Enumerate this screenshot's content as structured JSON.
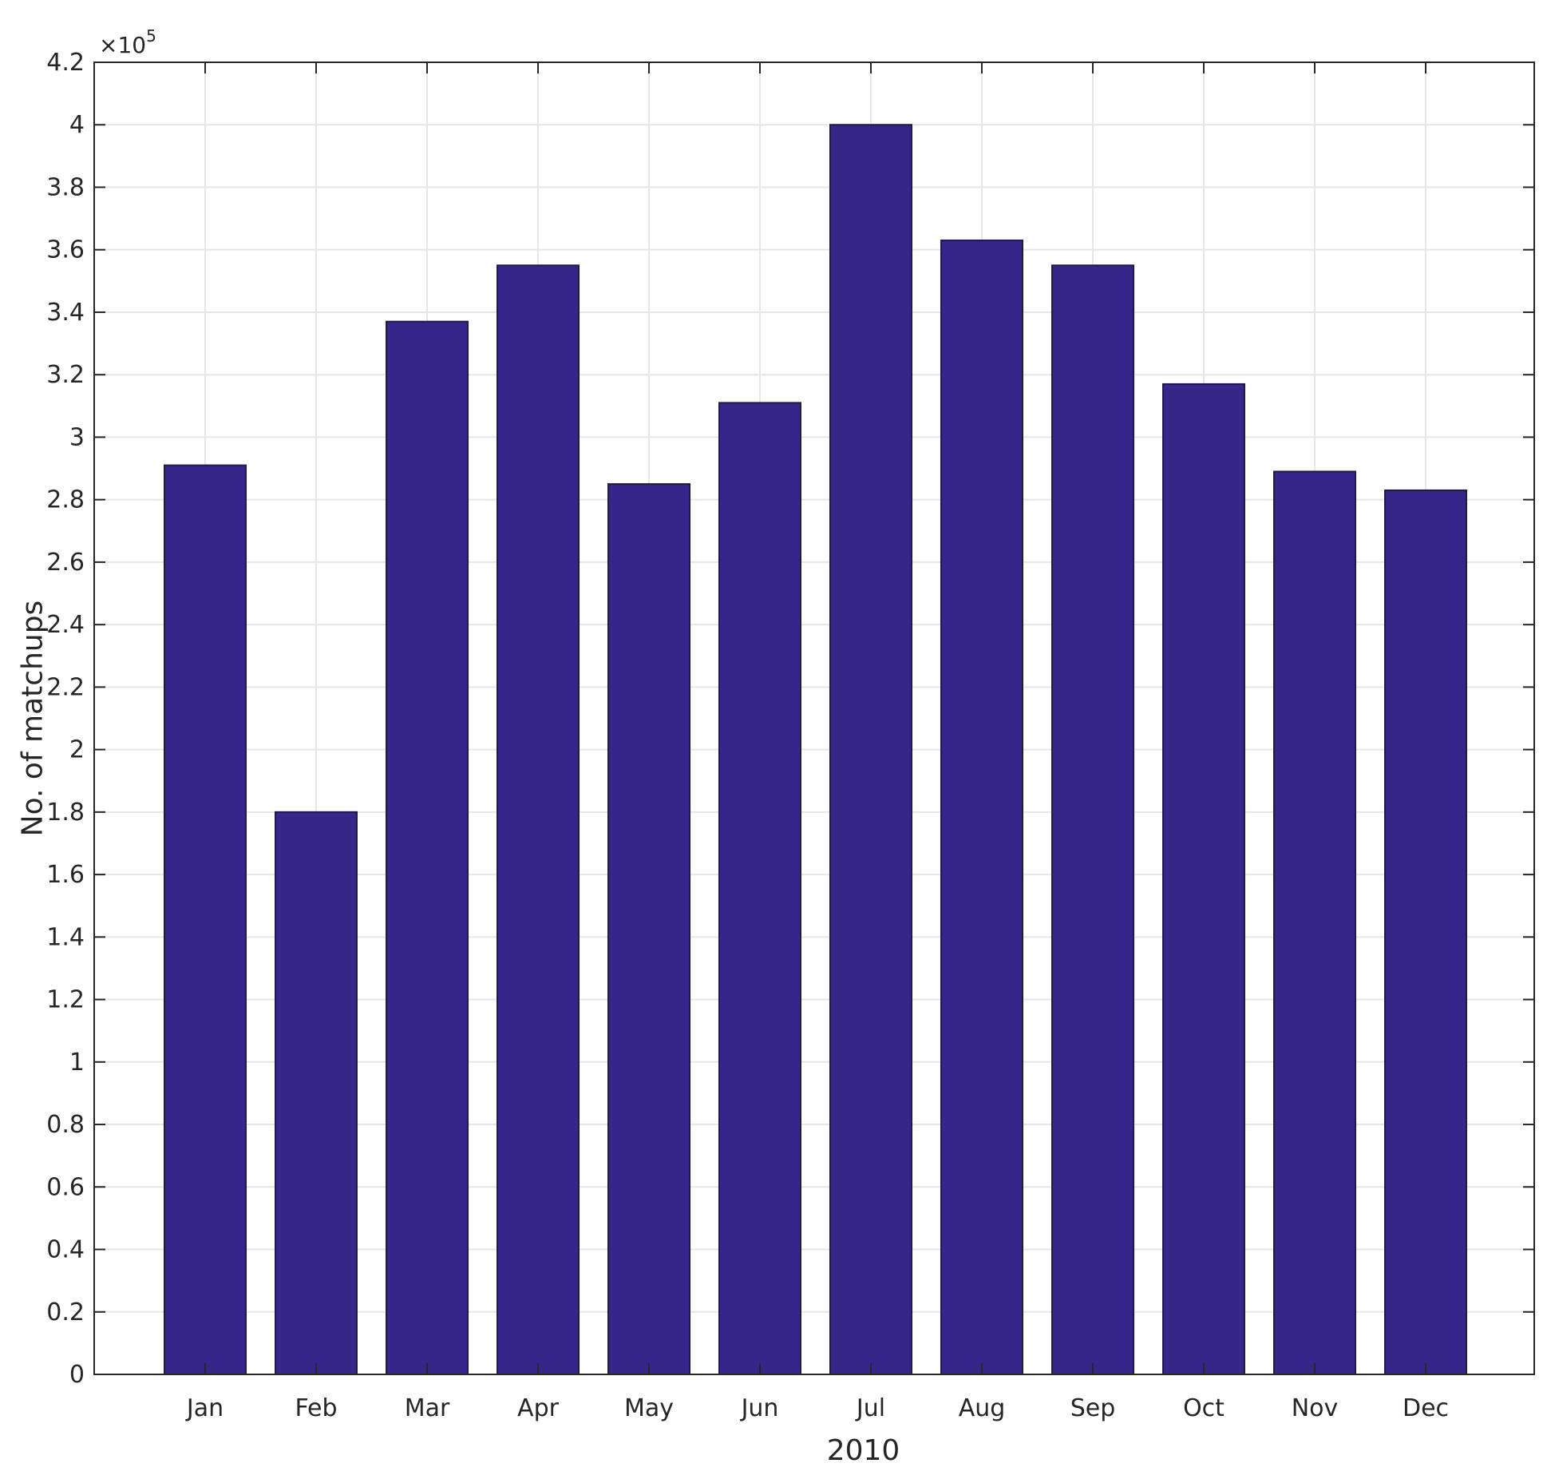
{
  "chart_data": {
    "type": "bar",
    "categories": [
      "Jan",
      "Feb",
      "Mar",
      "Apr",
      "May",
      "Jun",
      "Jul",
      "Aug",
      "Sep",
      "Oct",
      "Nov",
      "Dec"
    ],
    "values": [
      291000,
      180000,
      337000,
      355000,
      285000,
      311000,
      400000,
      363000,
      355000,
      317000,
      289000,
      283000
    ],
    "title": "",
    "xlabel": "2010",
    "ylabel": "No. of matchups",
    "ylim": [
      0,
      420000
    ],
    "yticks": [
      "0",
      "0.2",
      "0.4",
      "0.6",
      "0.8",
      "1",
      "1.2",
      "1.4",
      "1.6",
      "1.8",
      "2",
      "2.2",
      "2.4",
      "2.6",
      "2.8",
      "3",
      "3.2",
      "3.4",
      "3.6",
      "3.8",
      "4",
      "4.2"
    ],
    "ytick_values": [
      0,
      20000,
      40000,
      60000,
      80000,
      100000,
      120000,
      140000,
      160000,
      180000,
      200000,
      220000,
      240000,
      260000,
      280000,
      300000,
      320000,
      340000,
      360000,
      380000,
      400000,
      420000
    ],
    "y_exponent_base": "×10",
    "y_exponent_power": "5",
    "grid": true,
    "colors": {
      "bar": "#372689",
      "grid": "#e6e6e6",
      "axis": "#262626"
    }
  }
}
